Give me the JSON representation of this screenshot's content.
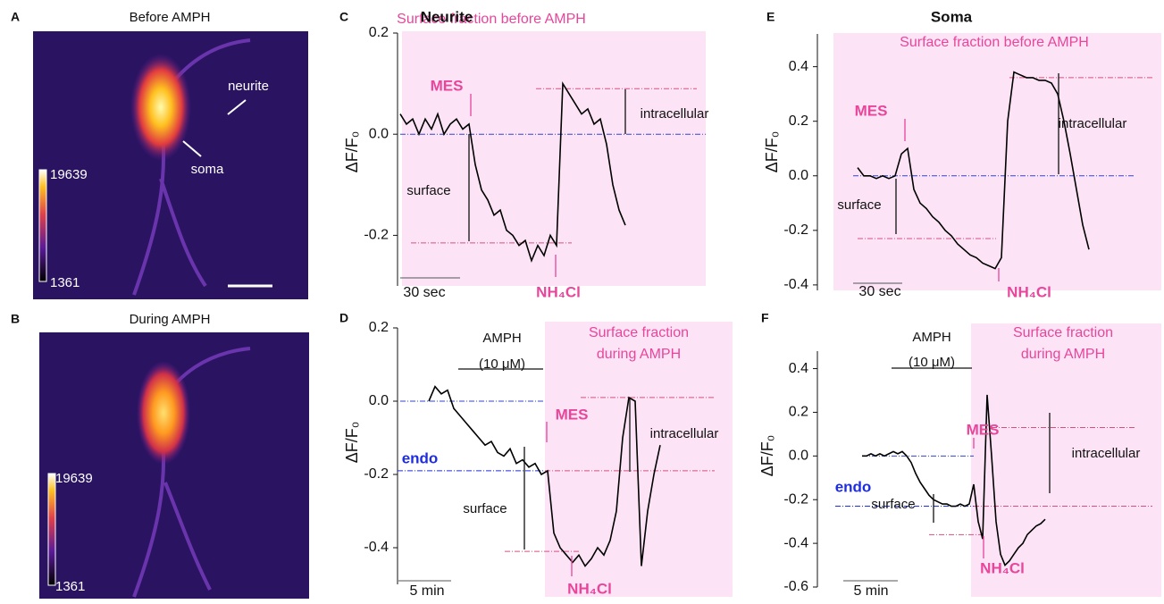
{
  "panels": [
    {
      "letter": "A",
      "title": "Before AMPH",
      "colorbar_max": 19639,
      "colorbar_min": 1361,
      "labels": [
        "neurite",
        "soma"
      ]
    },
    {
      "letter": "B",
      "title": "During AMPH",
      "colorbar_max": 19639,
      "colorbar_min": 1361
    }
  ],
  "chart_data": [
    {
      "type": "line",
      "letter": "C",
      "title": "Neurite",
      "ylabel": "ΔF/F₀",
      "ylim": [
        -0.3,
        0.2
      ],
      "yticks": [
        0.2,
        {
          "value": 0,
          "label": "0.0"
        },
        -0.2
      ],
      "shade_color": "#fce4f6",
      "shade_label": [
        "Surface fraction before AMPH"
      ],
      "series": [
        {
          "color": "#000000",
          "values": [
            0.04,
            0.02,
            0.03,
            0.0,
            0.03,
            0.01,
            0.04,
            0.0,
            0.02,
            0.03,
            0.01,
            0.02,
            -0.06,
            -0.11,
            -0.13,
            -0.16,
            -0.15,
            -0.19,
            -0.2,
            -0.22,
            -0.21,
            -0.25,
            -0.22,
            -0.24,
            -0.2,
            -0.22,
            0.1,
            0.08,
            0.06,
            0.04,
            0.05,
            0.02,
            0.03,
            -0.02,
            -0.1,
            -0.15,
            -0.18
          ]
        }
      ],
      "reference_lines": [
        {
          "value": 0,
          "color": "#3344cc"
        },
        {
          "value": 0.09,
          "color": "#d9507f"
        },
        {
          "value": -0.215,
          "color": "#d9507f"
        }
      ],
      "annotations": [
        "MES",
        "NH₄Cl",
        "surface",
        "intracellular"
      ],
      "scale_bar": "30 sec"
    },
    {
      "type": "line",
      "letter": "D",
      "ylabel": "ΔF/F₀",
      "ylim": [
        -0.5,
        0.2
      ],
      "yticks": [
        0.2,
        {
          "value": 0,
          "label": "0.0"
        },
        -0.2,
        -0.4
      ],
      "shade_color": "#fce4f6",
      "shade_label": [
        "Surface fraction",
        "during AMPH"
      ],
      "series": [
        {
          "color": "#000000",
          "values": [
            0.0,
            0.04,
            0.02,
            0.03,
            -0.02,
            -0.04,
            -0.06,
            -0.08,
            -0.1,
            -0.12,
            -0.11,
            -0.14,
            -0.15,
            -0.13,
            -0.17,
            -0.16,
            -0.18,
            -0.17,
            -0.2,
            -0.19,
            -0.36,
            -0.4,
            -0.42,
            -0.44,
            -0.42,
            -0.45,
            -0.43,
            -0.4,
            -0.42,
            -0.38,
            -0.3,
            -0.1,
            0.01,
            0.0,
            -0.45,
            -0.3,
            -0.2,
            -0.12
          ]
        }
      ],
      "reference_lines": [
        {
          "value": 0,
          "color": "#3344cc"
        },
        {
          "value": -0.19,
          "color": "#1f2de0"
        },
        {
          "value": -0.19,
          "color": "#d9507f"
        },
        {
          "value": 0.01,
          "color": "#d9507f"
        },
        {
          "value": -0.41,
          "color": "#d9507f"
        }
      ],
      "annotations": [
        "AMPH",
        "(10 μM)",
        "MES",
        "NH₄Cl",
        "surface",
        "intracellular",
        "endo"
      ],
      "scale_bar": "5 min"
    },
    {
      "type": "line",
      "letter": "E",
      "title": "Soma",
      "ylabel": "ΔF/F₀",
      "ylim": [
        -0.42,
        0.52
      ],
      "yticks": [
        0.4,
        0.2,
        {
          "value": 0,
          "label": "0.0"
        },
        -0.2,
        -0.4
      ],
      "shade_color": "#fce4f6",
      "shade_label": [
        "Surface fraction before AMPH"
      ],
      "series": [
        {
          "color": "#000000",
          "values": [
            0.03,
            0.0,
            0.0,
            -0.01,
            0.0,
            -0.01,
            0.0,
            0.08,
            0.1,
            -0.05,
            -0.1,
            -0.12,
            -0.15,
            -0.17,
            -0.2,
            -0.22,
            -0.25,
            -0.27,
            -0.29,
            -0.3,
            -0.32,
            -0.33,
            -0.34,
            -0.3,
            0.2,
            0.38,
            0.37,
            0.36,
            0.36,
            0.35,
            0.35,
            0.34,
            0.3,
            0.2,
            0.08,
            -0.05,
            -0.18,
            -0.27
          ]
        }
      ],
      "reference_lines": [
        {
          "value": 0,
          "color": "#3344cc"
        },
        {
          "value": 0.36,
          "color": "#d9507f"
        },
        {
          "value": -0.23,
          "color": "#d9507f"
        }
      ],
      "annotations": [
        "MES",
        "NH₄Cl",
        "surface",
        "intracellular"
      ],
      "scale_bar": "30 sec"
    },
    {
      "type": "line",
      "letter": "F",
      "ylabel": "ΔF/F₀",
      "ylim": [
        -0.6,
        0.48
      ],
      "yticks": [
        0.4,
        0.2,
        {
          "value": 0,
          "label": "0.0"
        },
        -0.2,
        -0.4,
        -0.6
      ],
      "shade_color": "#fce4f6",
      "shade_label": [
        "Surface fraction",
        "during AMPH"
      ],
      "series": [
        {
          "color": "#000000",
          "values": [
            0.0,
            0.0,
            0.01,
            0.0,
            0.01,
            0.0,
            0.01,
            0.02,
            0.01,
            0.02,
            0.0,
            -0.03,
            -0.08,
            -0.12,
            -0.15,
            -0.18,
            -0.2,
            -0.21,
            -0.22,
            -0.22,
            -0.23,
            -0.23,
            -0.22,
            -0.23,
            -0.22,
            -0.13,
            -0.3,
            -0.38,
            0.28,
            0.0,
            -0.3,
            -0.45,
            -0.5,
            -0.48,
            -0.45,
            -0.42,
            -0.4,
            -0.36,
            -0.34,
            -0.32,
            -0.31,
            -0.29
          ]
        }
      ],
      "reference_lines": [
        {
          "value": 0,
          "color": "#3344cc"
        },
        {
          "value": -0.23,
          "color": "#1f2de0"
        },
        {
          "value": -0.23,
          "color": "#d9507f"
        },
        {
          "value": 0.13,
          "color": "#d9507f"
        },
        {
          "value": -0.36,
          "color": "#d9507f"
        }
      ],
      "annotations": [
        "AMPH",
        "(10 μM)",
        "MES",
        "NH₄Cl",
        "surface",
        "intracellular",
        "endo"
      ],
      "scale_bar": "5 min"
    }
  ]
}
